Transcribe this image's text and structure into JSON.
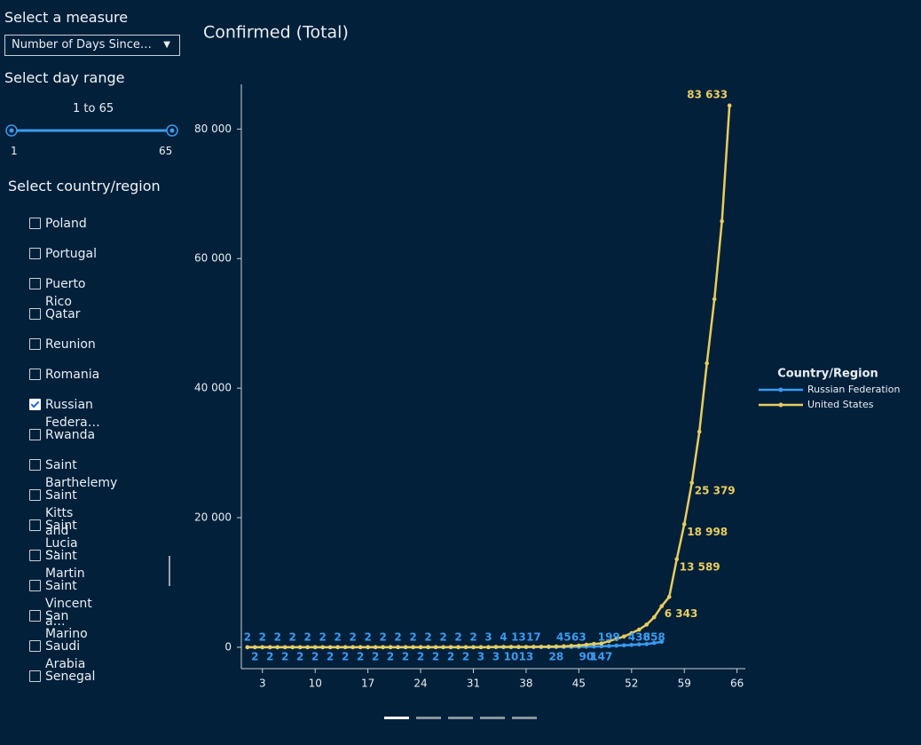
{
  "controls": {
    "measure_label": "Select a measure",
    "measure_value": "Number of Days Since…",
    "range_label": "Select day range",
    "range_text": "1 to 65",
    "range_min_label": "1",
    "range_max_label": "65",
    "country_label": "Select country/region",
    "countries": [
      {
        "name": "Poland",
        "checked": false
      },
      {
        "name": "Portugal",
        "checked": false
      },
      {
        "name": "Puerto Rico",
        "checked": false
      },
      {
        "name": "Qatar",
        "checked": false
      },
      {
        "name": "Reunion",
        "checked": false
      },
      {
        "name": "Romania",
        "checked": false
      },
      {
        "name": "Russian Federa…",
        "checked": true
      },
      {
        "name": "Rwanda",
        "checked": false
      },
      {
        "name": "Saint Barthelemy",
        "checked": false
      },
      {
        "name": "Saint Kitts and …",
        "checked": false
      },
      {
        "name": "Saint Lucia",
        "checked": false
      },
      {
        "name": "Saint Martin",
        "checked": false
      },
      {
        "name": "Saint Vincent a…",
        "checked": false
      },
      {
        "name": "San Marino",
        "checked": false
      },
      {
        "name": "Saudi Arabia",
        "checked": false
      },
      {
        "name": "Senegal",
        "checked": false
      }
    ]
  },
  "chart_data": {
    "type": "line",
    "title": "Confirmed (Total)",
    "legend_title": "Country/Region",
    "legend": "right",
    "x": [
      1,
      2,
      3,
      4,
      5,
      6,
      7,
      8,
      9,
      10,
      11,
      12,
      13,
      14,
      15,
      16,
      17,
      18,
      19,
      20,
      21,
      22,
      23,
      24,
      25,
      26,
      27,
      28,
      29,
      30,
      31,
      32,
      33,
      34,
      35,
      36,
      37,
      38,
      39,
      40,
      41,
      42,
      43,
      44,
      45,
      46,
      47,
      48,
      49,
      50,
      51,
      52,
      53,
      54,
      55,
      56,
      57,
      58,
      59,
      60,
      61,
      62,
      63,
      64,
      65
    ],
    "xlim": [
      0.2,
      67.1
    ],
    "xticks": [
      3,
      10,
      17,
      24,
      31,
      38,
      45,
      52,
      59,
      66
    ],
    "ylim": [
      -3300,
      86900
    ],
    "yticks": [
      {
        "value": 0,
        "label": "0"
      },
      {
        "value": 20000,
        "label": "20 000"
      },
      {
        "value": 40000,
        "label": "40 000"
      },
      {
        "value": 60000,
        "label": "60 000"
      },
      {
        "value": 80000,
        "label": "80 000"
      }
    ],
    "series": [
      {
        "name": "Russian Federation",
        "color": "#3a9bf0",
        "values": [
          2,
          2,
          2,
          2,
          2,
          2,
          2,
          2,
          2,
          2,
          2,
          2,
          2,
          2,
          2,
          2,
          2,
          2,
          2,
          2,
          2,
          2,
          2,
          2,
          2,
          2,
          2,
          2,
          2,
          2,
          2,
          3,
          3,
          3,
          4,
          10,
          13,
          13,
          17,
          17,
          20,
          28,
          45,
          59,
          63,
          90,
          114,
          147,
          199,
          253,
          306,
          367,
          438,
          495,
          658,
          840,
          null,
          null,
          null,
          null,
          null,
          null,
          null,
          null,
          null
        ]
      },
      {
        "name": "United States",
        "color": "#e8cd5e",
        "values": [
          1,
          1,
          2,
          2,
          5,
          5,
          5,
          5,
          5,
          7,
          8,
          8,
          11,
          11,
          11,
          11,
          11,
          11,
          11,
          11,
          12,
          12,
          13,
          13,
          13,
          13,
          13,
          13,
          13,
          13,
          15,
          15,
          15,
          51,
          51,
          57,
          58,
          60,
          68,
          74,
          98,
          118,
          149,
          217,
          262,
          402,
          518,
          583,
          959,
          1281,
          1663,
          2179,
          2727,
          3499,
          4632,
          6343,
          7783,
          13589,
          18998,
          25379,
          33276,
          43843,
          53740,
          65778,
          83633
        ],
        "value_labels": [
          null,
          null,
          null,
          null,
          null,
          null,
          null,
          null,
          null,
          null,
          null,
          null,
          null,
          null,
          null,
          null,
          null,
          null,
          null,
          null,
          null,
          null,
          null,
          null,
          null,
          null,
          null,
          null,
          null,
          null,
          null,
          null,
          null,
          null,
          null,
          null,
          null,
          null,
          null,
          null,
          null,
          null,
          null,
          null,
          null,
          null,
          null,
          null,
          null,
          null,
          null,
          null,
          null,
          null,
          null,
          "6 343",
          null,
          "13 589",
          "18 998",
          "25 379",
          null,
          null,
          null,
          null,
          "83 633"
        ]
      }
    ]
  }
}
